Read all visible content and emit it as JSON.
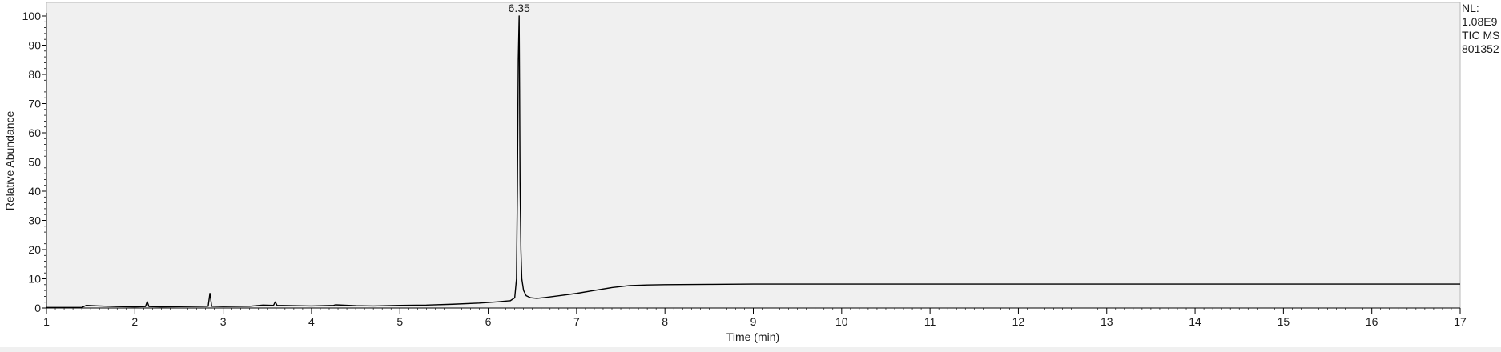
{
  "notes": {
    "nl_label": "NL:",
    "nl_value": "1.08E9",
    "trace_label": "TIC  MS",
    "sample_id": "801352"
  },
  "colors": {
    "plot_background": "#f0f0f0",
    "trace": "#000000",
    "axis": "#000000"
  },
  "chart_data": {
    "type": "line",
    "title": "",
    "xlabel": "Time (min)",
    "ylabel": "Relative Abundance",
    "xlim": [
      1,
      17
    ],
    "ylim": [
      0,
      100
    ],
    "x_ticks": [
      1,
      2,
      3,
      4,
      5,
      6,
      7,
      8,
      9,
      10,
      11,
      12,
      13,
      14,
      15,
      16,
      17
    ],
    "y_ticks": [
      0,
      10,
      20,
      30,
      40,
      50,
      60,
      70,
      80,
      90,
      100
    ],
    "grid": false,
    "annotations": [
      {
        "text": "6.35",
        "x": 6.35,
        "y": 100
      }
    ],
    "series": [
      {
        "points": [
          [
            1.0,
            0.2
          ],
          [
            1.4,
            0.2
          ],
          [
            1.45,
            0.9
          ],
          [
            1.6,
            0.7
          ],
          [
            1.8,
            0.5
          ],
          [
            2.0,
            0.4
          ],
          [
            2.12,
            0.5
          ],
          [
            2.14,
            2.2
          ],
          [
            2.16,
            0.5
          ],
          [
            2.3,
            0.4
          ],
          [
            2.6,
            0.5
          ],
          [
            2.83,
            0.6
          ],
          [
            2.85,
            5.0
          ],
          [
            2.87,
            0.6
          ],
          [
            3.0,
            0.5
          ],
          [
            3.3,
            0.6
          ],
          [
            3.45,
            1.0
          ],
          [
            3.57,
            0.9
          ],
          [
            3.59,
            2.1
          ],
          [
            3.61,
            0.9
          ],
          [
            3.8,
            0.8
          ],
          [
            4.0,
            0.7
          ],
          [
            4.25,
            0.9
          ],
          [
            4.27,
            1.1
          ],
          [
            4.5,
            0.8
          ],
          [
            4.7,
            0.7
          ],
          [
            5.0,
            0.9
          ],
          [
            5.3,
            1.0
          ],
          [
            5.6,
            1.3
          ],
          [
            5.9,
            1.7
          ],
          [
            6.1,
            2.1
          ],
          [
            6.25,
            2.5
          ],
          [
            6.3,
            3.5
          ],
          [
            6.32,
            10.0
          ],
          [
            6.33,
            40.0
          ],
          [
            6.34,
            85.0
          ],
          [
            6.35,
            100.0
          ],
          [
            6.355,
            75.0
          ],
          [
            6.36,
            43.0
          ],
          [
            6.37,
            20.0
          ],
          [
            6.38,
            10.0
          ],
          [
            6.4,
            6.0
          ],
          [
            6.43,
            4.2
          ],
          [
            6.48,
            3.5
          ],
          [
            6.55,
            3.3
          ],
          [
            6.65,
            3.6
          ],
          [
            6.8,
            4.2
          ],
          [
            7.0,
            5.0
          ],
          [
            7.2,
            6.0
          ],
          [
            7.4,
            7.0
          ],
          [
            7.6,
            7.7
          ],
          [
            7.8,
            7.9
          ],
          [
            8.0,
            8.0
          ],
          [
            8.5,
            8.1
          ],
          [
            9.0,
            8.2
          ],
          [
            10.0,
            8.2
          ],
          [
            11.0,
            8.2
          ],
          [
            12.0,
            8.2
          ],
          [
            13.0,
            8.2
          ],
          [
            14.0,
            8.2
          ],
          [
            15.0,
            8.2
          ],
          [
            16.0,
            8.2
          ],
          [
            17.0,
            8.2
          ]
        ]
      }
    ]
  }
}
